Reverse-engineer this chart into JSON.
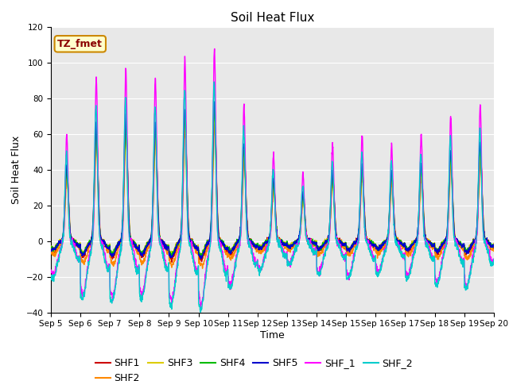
{
  "title": "Soil Heat Flux",
  "ylabel": "Soil Heat Flux",
  "xlabel": "Time",
  "ylim": [
    -40,
    120
  ],
  "yticks": [
    -40,
    -20,
    0,
    20,
    40,
    60,
    80,
    100,
    120
  ],
  "xtick_labels": [
    "Sep 5",
    "Sep 6",
    "Sep 7",
    "Sep 8",
    "Sep 9",
    "Sep 10",
    "Sep 11",
    "Sep 12",
    "Sep 13",
    "Sep 14",
    "Sep 15",
    "Sep 16",
    "Sep 17",
    "Sep 18",
    "Sep 19",
    "Sep 20"
  ],
  "series_colors": {
    "SHF1": "#cc0000",
    "SHF2": "#ff8800",
    "SHF3": "#ddcc00",
    "SHF4": "#00bb00",
    "SHF5": "#0000cc",
    "SHF_1": "#ff00ff",
    "SHF_2": "#00cccc"
  },
  "annotation_text": "TZ_fmet",
  "annotation_bg": "#ffffcc",
  "annotation_border": "#cc8800",
  "bg_color": "#e8e8e8",
  "title_fontsize": 11,
  "axis_fontsize": 9,
  "legend_fontsize": 9,
  "n_days": 15,
  "pts_per_day": 144,
  "amp_factors": [
    0.55,
    0.85,
    0.9,
    0.85,
    0.95,
    1.0,
    0.7,
    0.45,
    0.35,
    0.5,
    0.55,
    0.5,
    0.55,
    0.65,
    0.7
  ],
  "shf_cluster_peak": 75,
  "shf_cluster_trough": 10,
  "shf1_peak": 75,
  "shf1_trough": 10,
  "shf2_peak": 65,
  "shf2_trough": 14,
  "shf3_peak": 72,
  "shf3_trough": 8,
  "shf4_peak": 73,
  "shf4_trough": 8,
  "shf5_peak": 78,
  "shf5_trough": 9,
  "shf_1_peak": 108,
  "shf_1_trough": 35,
  "shf_2_peak": 90,
  "shf_2_trough": 38
}
